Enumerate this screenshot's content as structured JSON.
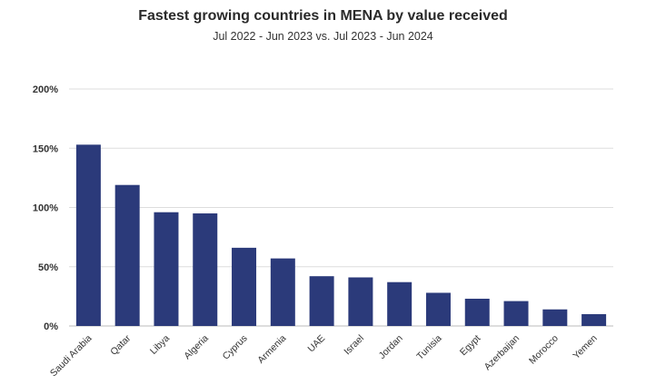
{
  "chart_data": {
    "type": "bar",
    "title": "Fastest growing countries in MENA by value received",
    "subtitle": "Jul 2022 - Jun 2023 vs. Jul 2023 - Jun 2024",
    "xlabel": "",
    "ylabel": "",
    "categories": [
      "Saudi Arabia",
      "Qatar",
      "Libya",
      "Algeria",
      "Cyprus",
      "Armenia",
      "UAE",
      "Israel",
      "Jordan",
      "Tunisia",
      "Egypt",
      "Azerbaijan",
      "Morocco",
      "Yemen"
    ],
    "values": [
      153,
      119,
      96,
      95,
      66,
      57,
      42,
      41,
      37,
      28,
      23,
      21,
      14,
      10
    ],
    "ylim": [
      0,
      200
    ],
    "yticks": [
      0,
      50,
      100,
      150,
      200
    ],
    "ytick_labels": [
      "0%",
      "50%",
      "100%",
      "150%",
      "200%"
    ],
    "grid": true,
    "bar_color": "#2b3a7a",
    "grid_color": "#dddddd"
  }
}
